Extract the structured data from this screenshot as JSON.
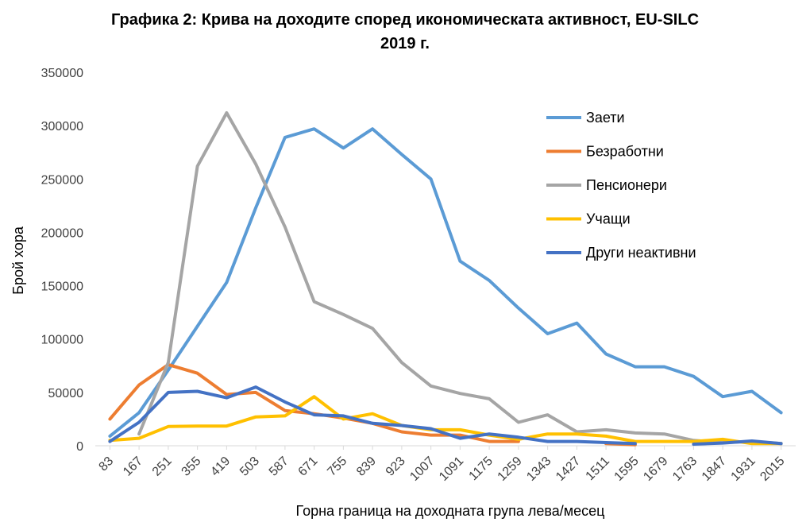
{
  "chart_data": {
    "type": "line",
    "title_line1": "Графика 2: Крива на доходите според икономическата активност, EU-SILC",
    "title_line2": "2019 г.",
    "xlabel": "Горна граница на доходната група лева/месец",
    "ylabel": "Брой хора",
    "ylim": [
      0,
      350000
    ],
    "ytick_labels": [
      "0",
      "50000",
      "100000",
      "150000",
      "200000",
      "250000",
      "300000",
      "350000"
    ],
    "grid": false,
    "legend_position": "top-right",
    "categories": [
      "83",
      "167",
      "251",
      "355",
      "419",
      "503",
      "587",
      "671",
      "755",
      "839",
      "923",
      "1007",
      "1091",
      "1175",
      "1259",
      "1343",
      "1427",
      "1511",
      "1595",
      "1679",
      "1763",
      "1847",
      "1931",
      "2015"
    ],
    "series": [
      {
        "name": "Заети",
        "color": "#5B9BD5",
        "values": [
          9000,
          31000,
          71000,
          112000,
          153000,
          223000,
          289000,
          297000,
          279000,
          297000,
          273000,
          250000,
          173000,
          155000,
          129000,
          105000,
          115000,
          86000,
          74000,
          74000,
          65000,
          46000,
          51000,
          31000
        ]
      },
      {
        "name": "Безработни",
        "color": "#ED7D31",
        "values": [
          25000,
          57000,
          76000,
          68000,
          48000,
          50000,
          33000,
          30000,
          26000,
          21000,
          13000,
          10000,
          10000,
          4000,
          4000,
          null,
          null,
          2000,
          1000,
          null,
          null,
          null,
          null,
          1000
        ]
      },
      {
        "name": "Пенсионери",
        "color": "#A5A5A5",
        "values": [
          null,
          11000,
          78000,
          262000,
          312000,
          264000,
          205000,
          135000,
          123000,
          110000,
          78000,
          56000,
          49000,
          44000,
          22000,
          29000,
          13000,
          15000,
          12000,
          11000,
          5000,
          3000,
          4000,
          2000
        ]
      },
      {
        "name": "Учащи",
        "color": "#FFC000",
        "values": [
          5000,
          7000,
          18000,
          18500,
          18500,
          27000,
          28000,
          46000,
          25000,
          30000,
          19000,
          15000,
          15000,
          10000,
          6000,
          11000,
          11000,
          9000,
          4000,
          4000,
          4000,
          6000,
          2000,
          2000
        ]
      },
      {
        "name": "Други неактивни",
        "color": "#4472C4",
        "values": [
          4000,
          22000,
          50000,
          51000,
          45000,
          55000,
          41000,
          29000,
          28000,
          21000,
          19000,
          16000,
          7000,
          11000,
          8000,
          4000,
          4000,
          3000,
          2000,
          null,
          1500,
          2500,
          4500,
          2000
        ]
      }
    ]
  }
}
